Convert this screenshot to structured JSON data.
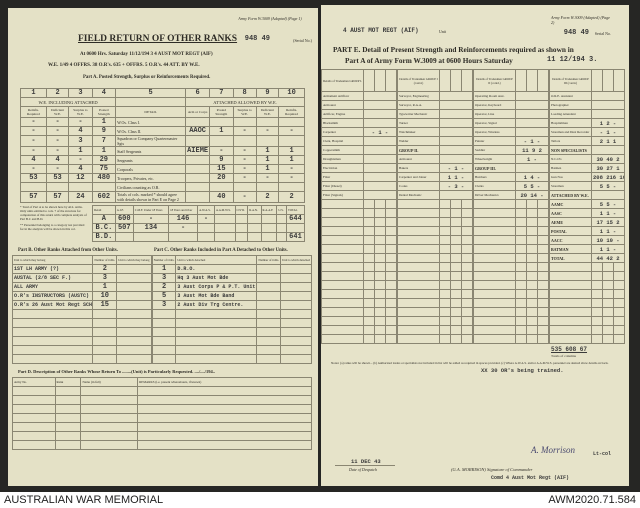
{
  "caption": {
    "left": "AUSTRALIAN WAR MEMORIAL",
    "right": "AWM2020.71.584"
  },
  "left": {
    "form_ref": "Army Form W.3009 (Adapted) (Page 1)",
    "serial": "948 49",
    "serial_label": "(Serial No.)",
    "title": "FIELD RETURN OF OTHER RANKS",
    "line1": "At 0600 Hrs. Saturday 11/12/194 3  4 AUST MOT REGT (AIF)",
    "line2": "W.E. 1/49 4  OFFRS. 38 O.R's. 635 + OFFRS. 5 O.R's. 44 ATT. BY W.E.",
    "part_a": "Part A. Posted Strength, Surplus or Reinforcements Required.",
    "col_numbers": [
      "1",
      "2",
      "3",
      "4",
      "5",
      "6",
      "7",
      "8",
      "9",
      "10"
    ],
    "we_header": "W.E. INCLUDING ATTACHED",
    "att_header": "ATTACHED ALLOWED BY W.E.",
    "headers": [
      "Reinfts. Required",
      "Deficient W.E.",
      "Surplus to W.E.",
      "Posted Strength",
      "DETAIL",
      "Arm or Corps",
      "Posted Strength",
      "Surplus to W.E.",
      "Deficient W.E.",
      "Reinfts. Required"
    ],
    "rows": [
      [
        "-",
        "-",
        "-",
        "1",
        "W.Os. Class I.",
        "",
        "",
        "",
        "",
        ""
      ],
      [
        "-",
        "-",
        "4",
        "9",
        "W.Os. Class II.",
        "AAOC",
        "1",
        "-",
        "-",
        "-"
      ],
      [
        "-",
        "-",
        "3",
        "7",
        "Squadron or Company Quartermaster Sgts",
        "",
        "",
        "",
        "",
        ""
      ],
      [
        "-",
        "-",
        "1",
        "1",
        "Staff Sergeants",
        "AIEME",
        "-",
        "-",
        "1",
        "1"
      ],
      [
        "4",
        "4",
        "-",
        "29",
        "Sergeants",
        "",
        "9",
        "-",
        "1",
        "1"
      ],
      [
        "-",
        "-",
        "4",
        "75",
        "Corporals",
        "",
        "15",
        "-",
        "1",
        "-"
      ],
      [
        "53",
        "53",
        "12",
        "480",
        "Troopers, Privates, etc.",
        "",
        "20",
        "-",
        "-",
        "-"
      ],
      [
        "",
        "",
        "",
        "",
        "Civilians counting as O.R.",
        "",
        "",
        "",
        "",
        ""
      ],
      [
        "57",
        "57",
        "24",
        "602",
        "Totals of cols. marked * should agree with details shown in Part E on Page 2",
        "",
        "40",
        "-",
        "2",
        "2"
      ]
    ],
    "note1": "* Total of Part A to be shown here by ALL Arms. Only units entitled to cols. 7 of the structure for computation of this return with complete analysis of Part B.C and B.D.",
    "note2": "** Personnel belonging to a category not provided for in the analysis will be shown in this col.",
    "summary_headers": [
      "Detail",
      "A.I.F.",
      "C.M.F. Under 18 Years",
      "18 Years and Over",
      "A.W.A.S.",
      "A.A.M.W.S.",
      "CIVIL",
      "R.A.N.",
      "R.A.A.F.",
      "U.S.",
      "TOTAL"
    ],
    "summary_rows": [
      [
        "A",
        "600",
        "-",
        "146",
        "-",
        "",
        "",
        "",
        "",
        "",
        "644"
      ],
      [
        "B.C.",
        "507",
        "134",
        "-",
        "",
        "",
        "",
        "",
        "",
        "",
        ""
      ],
      [
        "B.D.",
        "",
        "",
        "",
        "",
        "",
        "",
        "",
        "",
        "",
        "641"
      ]
    ],
    "part_b_title": "Part B. Other Ranks Attached from Other Units.",
    "part_b_headers": [
      "Unit to which they belong",
      "Number of O.Rs.",
      "Unit to which they belong"
    ],
    "part_b_rows": [
      [
        "2",
        "1ST LH ARMY (?)"
      ],
      [
        "3",
        "AUSTAL (2/8 SEC F.)"
      ],
      [
        "1",
        "ALL ARMY"
      ],
      [
        "10",
        "O.R's INSTRUCTORS (AUSTC)"
      ],
      [
        "15",
        "O.R's 26 Aust Mot Regt SCHOOL (AUSTC)"
      ]
    ],
    "part_c_title": "Part C. Other Ranks Included in Part A Detached to Other Units.",
    "part_c_headers": [
      "Number of O.Rs.",
      "Unit to which detached",
      "Number of O.Rs.",
      "Unit to which detached"
    ],
    "part_c_rows": [
      [
        "1",
        "D.R.O."
      ],
      [
        "3",
        "Hq 3 Aust Mot Bde"
      ],
      [
        "2",
        "3 Aust Corps P & P.T. Unit"
      ],
      [
        "5",
        "3 Aust Mot Bde Band"
      ],
      [
        "3",
        "2 Aust Div Trg Centre."
      ]
    ],
    "part_d_title": "Part D. Description of Other Ranks Whose Return To ........(Unit) is Particularly Requested. ..../..../194..",
    "part_d_headers": [
      "Army No.",
      "Rank",
      "Name (in full)",
      "REMARKS (i.e. present whereabouts, if known)"
    ]
  },
  "right": {
    "unit": "4 AUST MOT REGT (AIF)",
    "unit_label": "Unit",
    "form_ref": "Army Form W.3009 (Adapted) (Page 2)",
    "serial": "948 49",
    "serial_label": "Serial No.",
    "title1": "PART E.  Detail of Present Strength and Reinforcements required as shown in",
    "title2": "Part A of Army Form W.3009 at 0600 Hours Saturday",
    "date": "11 12/194 3.",
    "group_headers": [
      "Details of Tradesmen GROUP I.",
      "Details of Tradesmen GROUP I (contd.)",
      "Details of Tradesmen GROUP II (contd.)",
      "Details of Tradesmen GROUP III (contd.)"
    ],
    "groups": [
      [
        [
          "Armament Artificer",
          ""
        ],
        [
          "Armourer",
          ""
        ],
        [
          "Artificer, Engine",
          ""
        ],
        [
          "Blacksmith",
          ""
        ],
        [
          "Carpenter",
          "- 1 -"
        ],
        [
          "Clerk, Hospital",
          ""
        ],
        [
          "Coppersmith",
          ""
        ],
        [
          "Draughtsman",
          ""
        ],
        [
          "Electrician",
          ""
        ],
        [
          "Fitter",
          ""
        ],
        [
          "Fitter (Diesel)",
          ""
        ],
        [
          "Fitter (Signals)",
          ""
        ]
      ],
      [
        [
          "Surveyor, Engineering",
          ""
        ],
        [
          "Surveyor, R.A.A.",
          ""
        ],
        [
          "Typewriter Mechanic",
          ""
        ],
        [
          "Turner",
          ""
        ],
        [
          "Watchmaker",
          ""
        ],
        [
          "Welder",
          ""
        ],
        [
          "GROUP II.",
          ""
        ],
        [
          "Armourer",
          ""
        ],
        [
          "Bakers",
          "- 1 -"
        ],
        [
          "Carpenter and Joiner",
          "1 1 -"
        ],
        [
          "Cooks",
          "- 3 -"
        ],
        [
          "Dental Mechanic",
          ""
        ]
      ],
      [
        [
          "Operating Room Asst.",
          ""
        ],
        [
          "Operator, Keyboard",
          ""
        ],
        [
          "Operator, Line",
          ""
        ],
        [
          "Operator, Signal",
          ""
        ],
        [
          "Operator, Wireless",
          ""
        ],
        [
          "Painter",
          "- 1 -"
        ],
        [
          "Saddler",
          "11 9 2"
        ],
        [
          "Wheelwright",
          "1 -"
        ],
        [
          "GROUP III.",
          ""
        ],
        [
          "Butchers",
          "1 4 -"
        ],
        [
          "Clerks",
          "5 5 -"
        ],
        [
          "Driver Mechanics",
          "20 14 -"
        ]
      ],
      [
        [
          "O.R.E. Assistant",
          ""
        ],
        [
          "Photographer",
          ""
        ],
        [
          "Loading Attendant",
          ""
        ],
        [
          "Hospitalmen",
          "1 2 -"
        ],
        [
          "Storeman and Dust Recorder",
          "- 1 -"
        ],
        [
          "Tailors",
          "2 1 1"
        ],
        [
          "NON SPECIALISTS",
          ""
        ],
        [
          "N.C.O's",
          "30 40 2"
        ],
        [
          "Batmen",
          "30 27 1"
        ],
        [
          "Gun Nos",
          "208 216 10"
        ],
        [
          "Storeman",
          "5 5 -"
        ],
        [
          "ATTACHED BY W.E.",
          ""
        ],
        [
          "AAMC",
          "5 5 -"
        ],
        [
          "AASC",
          "1 1 -"
        ],
        [
          "AEME",
          "17 15 2"
        ],
        [
          "POSTAL",
          "1 1 -"
        ],
        [
          "AACC",
          "10 10 -"
        ],
        [
          "BATMAN",
          "1 1 -"
        ],
        [
          "TOTAL",
          "44 42 2"
        ]
      ]
    ],
    "grand_total": "535 608 67",
    "totals_label": "Totals of columns",
    "notes": "Notes: (a) ranks will be shown... (b) Authorized trades or specialists not included in list will be added as required in spaces provided. (c) Where A.W.A.S. and/or A.A.M.W.S. personnel are desired show details on back.",
    "remark": "XX 30 OR's being trained.",
    "despatch_date": "11 DEC 43",
    "despatch_label": "Date of Despatch",
    "signature": "A. Morrison",
    "signature_rank": "Lt-col",
    "commander": "(G.A. MORRISON) Signature of Commander",
    "command": "Comd 4 Aust Mot Regt (AIF)"
  }
}
